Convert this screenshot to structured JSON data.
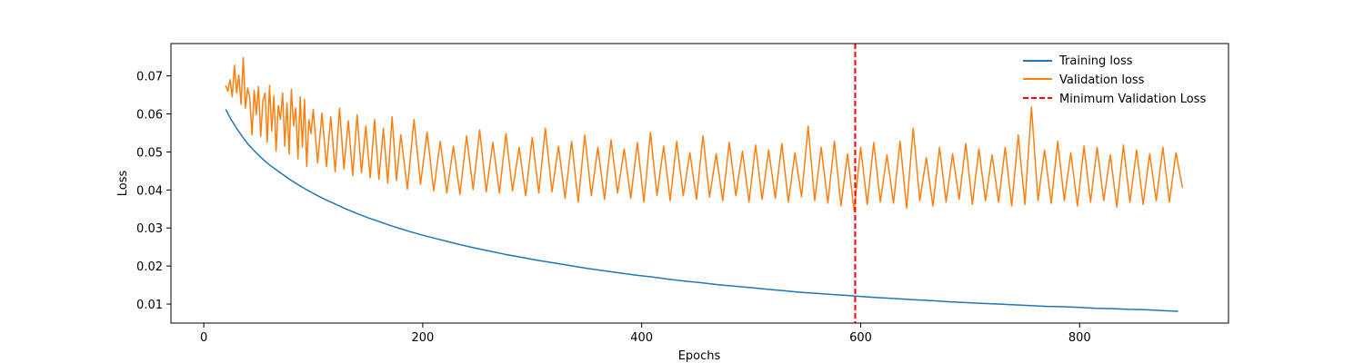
{
  "chart_data": {
    "type": "line",
    "title": "",
    "xlabel": "Epochs",
    "ylabel": "Loss",
    "xlim": [
      -30,
      936
    ],
    "ylim": [
      0.005,
      0.0785
    ],
    "xticks": [
      0,
      200,
      400,
      600,
      800
    ],
    "xtick_labels": [
      "0",
      "200",
      "400",
      "600",
      "800"
    ],
    "yticks": [
      0.01,
      0.02,
      0.03,
      0.04,
      0.05,
      0.06,
      0.07
    ],
    "ytick_labels": [
      "0.01",
      "0.02",
      "0.03",
      "0.04",
      "0.05",
      "0.06",
      "0.07"
    ],
    "grid": false,
    "legend_position": "top-right",
    "series": [
      {
        "name": "Training loss",
        "color": "#1f77b4",
        "x": [
          20,
          25,
          30,
          35,
          40,
          45,
          50,
          55,
          60,
          70,
          80,
          90,
          100,
          110,
          120,
          130,
          140,
          150,
          160,
          170,
          180,
          190,
          200,
          215,
          230,
          245,
          260,
          275,
          290,
          305,
          320,
          335,
          350,
          365,
          380,
          395,
          410,
          425,
          440,
          455,
          470,
          485,
          500,
          515,
          530,
          545,
          560,
          575,
          590,
          605,
          620,
          635,
          650,
          665,
          680,
          695,
          710,
          725,
          740,
          755,
          770,
          785,
          800,
          815,
          830,
          845,
          860,
          875,
          890
        ],
        "values": [
          0.0612,
          0.0585,
          0.0562,
          0.0541,
          0.0522,
          0.0506,
          0.0492,
          0.0478,
          0.0466,
          0.0445,
          0.0425,
          0.0407,
          0.0391,
          0.0376,
          0.0363,
          0.035,
          0.0338,
          0.0327,
          0.0317,
          0.0307,
          0.0298,
          0.0289,
          0.0281,
          0.027,
          0.0259,
          0.0249,
          0.024,
          0.0231,
          0.0223,
          0.0215,
          0.0208,
          0.0201,
          0.0194,
          0.0188,
          0.0182,
          0.0176,
          0.0171,
          0.0165,
          0.016,
          0.0156,
          0.0151,
          0.0147,
          0.0143,
          0.0139,
          0.0135,
          0.0131,
          0.0128,
          0.0125,
          0.0122,
          0.0119,
          0.0116,
          0.0114,
          0.0111,
          0.0109,
          0.0106,
          0.0104,
          0.0102,
          0.01,
          0.0098,
          0.0096,
          0.0094,
          0.0093,
          0.0091,
          0.0089,
          0.0088,
          0.0086,
          0.0085,
          0.0083,
          0.0081
        ]
      },
      {
        "name": "Validation loss",
        "color": "#ff7f0e",
        "x": [
          20,
          22,
          24,
          26,
          28,
          30,
          32,
          34,
          36,
          38,
          40,
          42,
          44,
          46,
          48,
          50,
          52,
          54,
          56,
          58,
          60,
          62,
          64,
          66,
          68,
          70,
          72,
          74,
          76,
          78,
          80,
          82,
          84,
          86,
          88,
          90,
          92,
          94,
          96,
          98,
          100,
          104,
          108,
          112,
          116,
          120,
          124,
          128,
          132,
          136,
          140,
          144,
          148,
          152,
          156,
          160,
          164,
          168,
          172,
          176,
          180,
          186,
          192,
          198,
          204,
          210,
          216,
          222,
          228,
          234,
          240,
          246,
          252,
          258,
          264,
          270,
          276,
          282,
          288,
          294,
          300,
          306,
          312,
          318,
          324,
          330,
          336,
          342,
          348,
          354,
          360,
          366,
          372,
          378,
          384,
          390,
          396,
          402,
          408,
          414,
          420,
          426,
          432,
          438,
          444,
          450,
          456,
          462,
          468,
          474,
          480,
          486,
          492,
          498,
          504,
          510,
          516,
          522,
          528,
          534,
          540,
          546,
          552,
          558,
          564,
          570,
          576,
          582,
          588,
          594,
          600,
          606,
          612,
          618,
          624,
          630,
          636,
          642,
          648,
          654,
          660,
          666,
          672,
          678,
          684,
          690,
          696,
          702,
          708,
          714,
          720,
          726,
          732,
          738,
          744,
          750,
          756,
          762,
          768,
          774,
          780,
          786,
          792,
          798,
          804,
          810,
          816,
          822,
          828,
          834,
          840,
          846,
          852,
          858,
          864,
          870,
          876,
          882,
          888,
          894
        ],
        "values": [
          0.0675,
          0.066,
          0.069,
          0.0645,
          0.0728,
          0.0655,
          0.0702,
          0.0625,
          0.0748,
          0.0615,
          0.0668,
          0.0642,
          0.0545,
          0.0662,
          0.0598,
          0.0672,
          0.0541,
          0.0635,
          0.0655,
          0.0525,
          0.0675,
          0.0555,
          0.0648,
          0.0502,
          0.0622,
          0.0585,
          0.0655,
          0.0515,
          0.0628,
          0.0495,
          0.0665,
          0.0568,
          0.0615,
          0.0482,
          0.0645,
          0.0512,
          0.0638,
          0.0462,
          0.0585,
          0.0548,
          0.0612,
          0.0471,
          0.0602,
          0.0462,
          0.0592,
          0.0448,
          0.0615,
          0.0455,
          0.0582,
          0.0438,
          0.0598,
          0.0445,
          0.0568,
          0.0432,
          0.0585,
          0.0428,
          0.0562,
          0.0418,
          0.0592,
          0.0425,
          0.0545,
          0.0402,
          0.0585,
          0.0415,
          0.0552,
          0.0398,
          0.0528,
          0.0392,
          0.0515,
          0.0388,
          0.0542,
          0.0401,
          0.0558,
          0.0395,
          0.0525,
          0.0392,
          0.0548,
          0.0398,
          0.0512,
          0.0385,
          0.0538,
          0.0392,
          0.0562,
          0.0395,
          0.0515,
          0.0378,
          0.0528,
          0.0368,
          0.0545,
          0.0385,
          0.0512,
          0.0375,
          0.0532,
          0.0392,
          0.0508,
          0.0378,
          0.0525,
          0.0368,
          0.0551,
          0.0385,
          0.0515,
          0.0372,
          0.0528,
          0.0385,
          0.0498,
          0.0375,
          0.0542,
          0.0381,
          0.0495,
          0.0372,
          0.0525,
          0.0385,
          0.0502,
          0.0368,
          0.0518,
          0.0375,
          0.0505,
          0.0378,
          0.0522,
          0.0368,
          0.0498,
          0.0382,
          0.0568,
          0.0372,
          0.0512,
          0.0365,
          0.0528,
          0.0358,
          0.0495,
          0.0345,
          0.0512,
          0.0362,
          0.0525,
          0.0368,
          0.0492,
          0.0365,
          0.0528,
          0.0352,
          0.0562,
          0.0372,
          0.0485,
          0.0358,
          0.0512,
          0.0368,
          0.0495,
          0.0375,
          0.0522,
          0.0362,
          0.0508,
          0.0372,
          0.0492,
          0.0368,
          0.0512,
          0.0358,
          0.0545,
          0.0362,
          0.0618,
          0.0372,
          0.0505,
          0.0365,
          0.0528,
          0.0372,
          0.0498,
          0.0358,
          0.0515,
          0.0368,
          0.0512,
          0.0372,
          0.0492,
          0.0355,
          0.0518,
          0.0368,
          0.0505,
          0.0362,
          0.0495,
          0.0372,
          0.0512,
          0.0368,
          0.0498,
          0.0405
        ]
      },
      {
        "name": "Minimum Validation Loss",
        "color": "#ff0000",
        "style": "dashed",
        "vertical_line_x": 595
      }
    ]
  }
}
